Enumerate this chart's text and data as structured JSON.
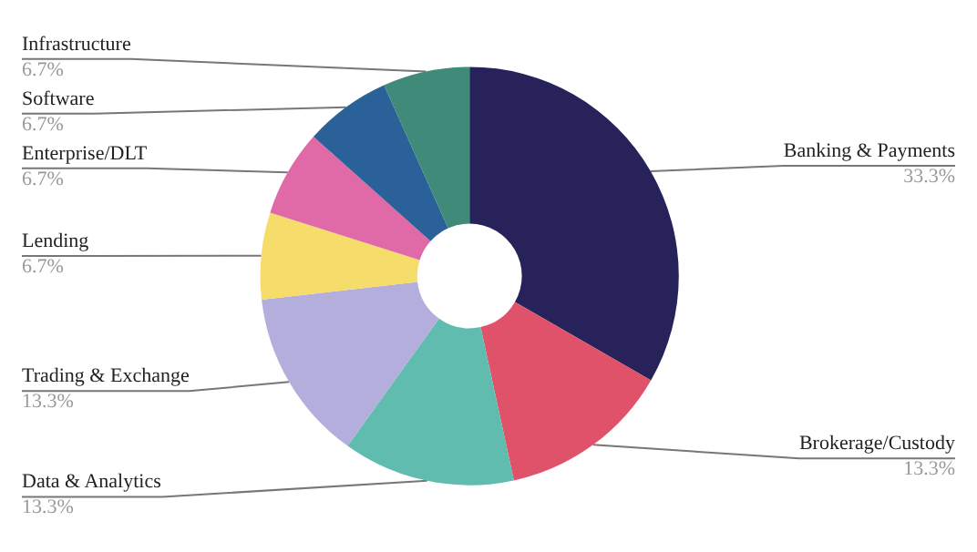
{
  "chart_data": {
    "type": "donut",
    "categories": [
      "Banking & Payments",
      "Brokerage/Custody",
      "Data & Analytics",
      "Trading & Exchange",
      "Lending",
      "Enterprise/DLT",
      "Software",
      "Infrastructure"
    ],
    "values": [
      33.3,
      13.3,
      13.3,
      13.3,
      6.7,
      6.7,
      6.7,
      6.7
    ],
    "value_labels": [
      "33.3%",
      "13.3%",
      "13.3%",
      "13.3%",
      "6.7%",
      "6.7%",
      "6.7%",
      "6.7%"
    ],
    "colors": [
      "#27235a",
      "#e0526a",
      "#5fbcae",
      "#b3aedb",
      "#f6dc6b",
      "#e06aa7",
      "#2b6199",
      "#3f8a78"
    ],
    "legend": false
  }
}
